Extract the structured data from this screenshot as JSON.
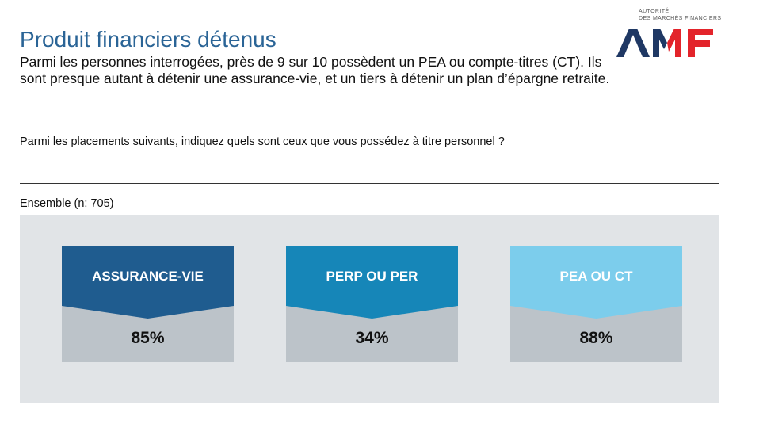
{
  "header": {
    "title": "Produit financiers détenus",
    "subtitle": "Parmi les personnes interrogées, près de 9 sur 10 possèdent un PEA ou compte-titres (CT). Ils sont presque autant à détenir une assurance-vie, et un tiers à détenir un plan d’épargne retraite."
  },
  "question": "Parmi les placements suivants, indiquez quels sont ceux que vous possédez à titre personnel ?",
  "base_label": "Ensemble (n: 705)",
  "logo": {
    "line1": "AUTORITÉ",
    "line2": "DES MARCHÉS FINANCIERS",
    "brand_color": "#1f3864",
    "accent_color": "#e3242b"
  },
  "chart_data": {
    "type": "table",
    "categories": [
      "ASSURANCE-VIE",
      "PERP OU PER",
      "PEA OU CT"
    ],
    "values": [
      85,
      34,
      88
    ],
    "value_labels": [
      "85%",
      "34%",
      "88%"
    ],
    "unit": "%",
    "colors": [
      "#1f5c8f",
      "#1686b8",
      "#7ccdec"
    ],
    "value_bg_color": "#bcc3c9"
  }
}
